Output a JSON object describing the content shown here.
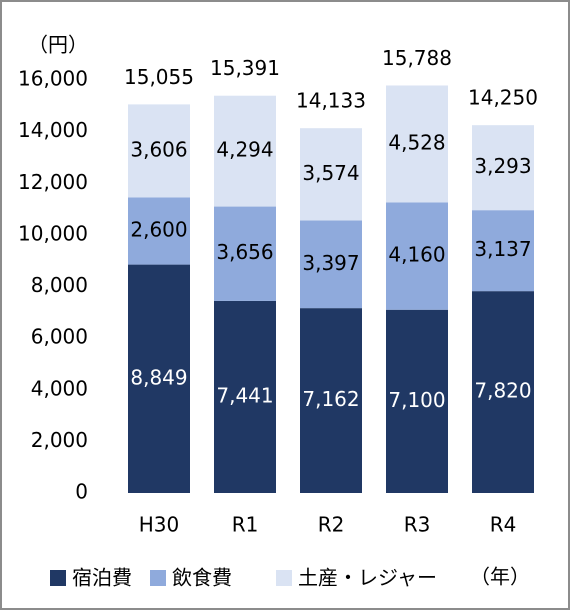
{
  "chart_data": {
    "type": "stacked_bar",
    "y_label": "（円）",
    "x_label": "（年）",
    "categories": [
      "H30",
      "R1",
      "R2",
      "R3",
      "R4"
    ],
    "series": [
      {
        "name": "宿泊費",
        "color": "#203864",
        "label_color": "#ffffff",
        "values": [
          8849,
          7441,
          7162,
          7100,
          7820
        ],
        "value_labels": [
          "8,849",
          "7,441",
          "7,162",
          "7,100",
          "7,820"
        ]
      },
      {
        "name": "飲食費",
        "color": "#8faadc",
        "label_color": "#000000",
        "values": [
          2600,
          3656,
          3397,
          4160,
          3137
        ],
        "value_labels": [
          "2,600",
          "3,656",
          "3,397",
          "4,160",
          "3,137"
        ]
      },
      {
        "name": "土産・レジャー",
        "color": "#dae3f3",
        "label_color": "#000000",
        "values": [
          3606,
          4294,
          3574,
          4528,
          3293
        ],
        "value_labels": [
          "3,606",
          "4,294",
          "3,574",
          "4,528",
          "3,293"
        ]
      }
    ],
    "totals": {
      "values": [
        15055,
        15391,
        14133,
        15788,
        14250
      ],
      "value_labels": [
        "15,055",
        "15,391",
        "14,133",
        "15,788",
        "14,250"
      ]
    },
    "ylim": [
      0,
      16000
    ],
    "yticks": [
      0,
      {
        "value": 2000,
        "label": "2,000"
      },
      {
        "value": 4000,
        "label": "4,000"
      },
      {
        "value": 6000,
        "label": "6,000"
      },
      {
        "value": 8000,
        "label": "8,000"
      },
      {
        "value": 10000,
        "label": "10,000"
      },
      {
        "value": 12000,
        "label": "12,000"
      },
      {
        "value": 14000,
        "label": "14,000"
      },
      {
        "value": 16000,
        "label": "16,000"
      }
    ],
    "grid": false
  }
}
